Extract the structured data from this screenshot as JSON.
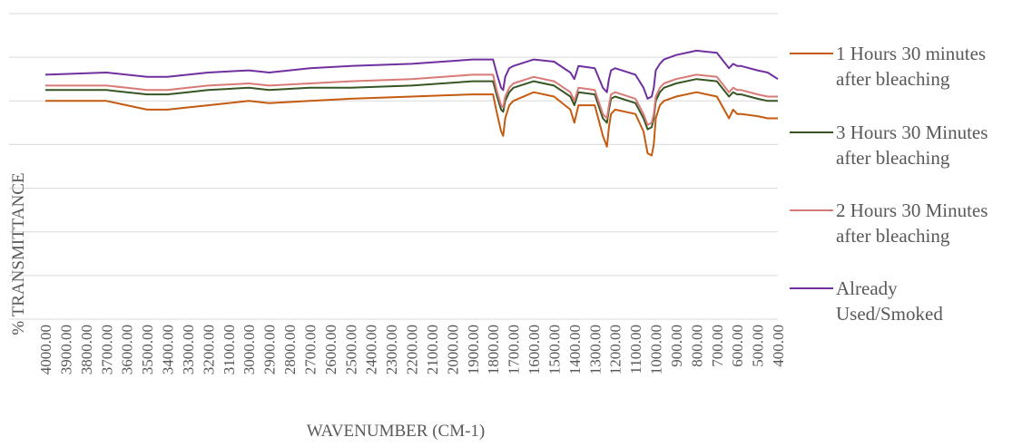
{
  "chart_data": {
    "type": "line",
    "xlabel": "WAVENUMBER (CM-1)",
    "ylabel": "% TRANSMITTANCE",
    "x_ticks": [
      "4000.00",
      "3900.00",
      "3800.00",
      "3700.00",
      "3600.00",
      "3500.00",
      "3400.00",
      "3300.00",
      "3200.00",
      "3100.00",
      "3000.00",
      "2900.00",
      "2800.00",
      "2700.00",
      "2600.00",
      "2500.00",
      "2400.00",
      "2300.00",
      "2200.00",
      "2100.00",
      "2000.00",
      "1900.00",
      "1800.00",
      "1700.00",
      "1600.00",
      "1500.00",
      "1400.00",
      "1300.00",
      "1200.00",
      "1100.00",
      "1000.00",
      "900.00",
      "800.00",
      "700.00",
      "600.00",
      "500.00",
      "400.00"
    ],
    "xlim": [
      4000,
      400
    ],
    "ylim": [
      0,
      7
    ],
    "y_gridlines": [
      0,
      1,
      2,
      3,
      4,
      5,
      6,
      7
    ],
    "y_tick_labels_visible": false,
    "grid": true,
    "legend_position": "right",
    "series": [
      {
        "name": "1 Hours 30 minutes after bleaching",
        "color": "#c55a11",
        "x": [
          4000,
          3700,
          3600,
          3500,
          3400,
          3300,
          3200,
          3000,
          2900,
          2700,
          2500,
          2200,
          1900,
          1800,
          1780,
          1760,
          1750,
          1740,
          1720,
          1700,
          1600,
          1500,
          1420,
          1400,
          1380,
          1300,
          1260,
          1240,
          1230,
          1220,
          1200,
          1100,
          1060,
          1040,
          1020,
          1010,
          1000,
          980,
          960,
          900,
          800,
          700,
          640,
          620,
          600,
          580,
          500,
          450,
          400
        ],
        "y": [
          5.0,
          5.0,
          4.9,
          4.8,
          4.8,
          4.85,
          4.9,
          5.0,
          4.95,
          5.0,
          5.05,
          5.1,
          5.15,
          5.15,
          4.7,
          4.3,
          4.2,
          4.6,
          4.9,
          5.0,
          5.2,
          5.1,
          4.8,
          4.5,
          4.9,
          4.9,
          4.2,
          3.95,
          4.4,
          4.7,
          4.8,
          4.7,
          4.3,
          3.8,
          3.75,
          4.0,
          4.6,
          4.9,
          5.0,
          5.1,
          5.2,
          5.1,
          4.6,
          4.8,
          4.7,
          4.7,
          4.65,
          4.6,
          4.6
        ]
      },
      {
        "name": "3 Hours 30 Minutes after bleaching",
        "color": "#375623",
        "x": [
          4000,
          3700,
          3600,
          3500,
          3400,
          3300,
          3200,
          3000,
          2900,
          2700,
          2500,
          2200,
          1900,
          1800,
          1780,
          1760,
          1750,
          1740,
          1720,
          1700,
          1600,
          1500,
          1420,
          1400,
          1380,
          1300,
          1260,
          1240,
          1230,
          1220,
          1200,
          1100,
          1060,
          1040,
          1020,
          1010,
          1000,
          980,
          960,
          900,
          800,
          700,
          640,
          620,
          600,
          580,
          500,
          450,
          400
        ],
        "y": [
          5.25,
          5.25,
          5.2,
          5.15,
          5.15,
          5.2,
          5.25,
          5.3,
          5.25,
          5.3,
          5.3,
          5.35,
          5.45,
          5.45,
          5.1,
          4.8,
          4.75,
          5.0,
          5.2,
          5.3,
          5.45,
          5.35,
          5.1,
          4.9,
          5.2,
          5.15,
          4.6,
          4.5,
          4.8,
          5.05,
          5.1,
          4.95,
          4.6,
          4.35,
          4.4,
          4.6,
          5.0,
          5.2,
          5.3,
          5.4,
          5.5,
          5.45,
          5.1,
          5.2,
          5.15,
          5.15,
          5.05,
          5.0,
          5.0
        ]
      },
      {
        "name": "2 Hours 30 Minutes after bleaching",
        "color": "#d87a76",
        "x": [
          4000,
          3700,
          3600,
          3500,
          3400,
          3300,
          3200,
          3000,
          2900,
          2700,
          2500,
          2200,
          1900,
          1800,
          1780,
          1760,
          1750,
          1740,
          1720,
          1700,
          1600,
          1500,
          1420,
          1400,
          1380,
          1300,
          1260,
          1240,
          1230,
          1220,
          1200,
          1100,
          1060,
          1040,
          1020,
          1010,
          1000,
          980,
          960,
          900,
          800,
          700,
          640,
          620,
          600,
          580,
          500,
          450,
          400
        ],
        "y": [
          5.35,
          5.35,
          5.3,
          5.25,
          5.25,
          5.3,
          5.35,
          5.4,
          5.35,
          5.4,
          5.45,
          5.5,
          5.6,
          5.6,
          5.2,
          4.9,
          4.85,
          5.1,
          5.3,
          5.4,
          5.55,
          5.45,
          5.2,
          5.0,
          5.3,
          5.25,
          4.7,
          4.6,
          4.9,
          5.15,
          5.2,
          5.05,
          4.7,
          4.45,
          4.5,
          4.7,
          5.1,
          5.3,
          5.4,
          5.5,
          5.6,
          5.55,
          5.2,
          5.3,
          5.25,
          5.25,
          5.15,
          5.1,
          5.1
        ]
      },
      {
        "name": "Already Used/Smoked",
        "color": "#7030a0",
        "x": [
          4000,
          3700,
          3600,
          3500,
          3400,
          3300,
          3200,
          3000,
          2900,
          2700,
          2500,
          2200,
          1900,
          1800,
          1780,
          1760,
          1750,
          1740,
          1720,
          1700,
          1600,
          1500,
          1420,
          1400,
          1380,
          1300,
          1260,
          1240,
          1230,
          1220,
          1200,
          1100,
          1060,
          1040,
          1020,
          1010,
          1000,
          980,
          960,
          900,
          800,
          700,
          640,
          620,
          600,
          580,
          500,
          450,
          400
        ],
        "y": [
          5.6,
          5.65,
          5.6,
          5.55,
          5.55,
          5.6,
          5.65,
          5.7,
          5.65,
          5.75,
          5.8,
          5.85,
          5.95,
          5.95,
          5.6,
          5.3,
          5.25,
          5.55,
          5.75,
          5.8,
          5.95,
          5.9,
          5.65,
          5.5,
          5.8,
          5.75,
          5.3,
          5.2,
          5.5,
          5.7,
          5.75,
          5.6,
          5.3,
          5.05,
          5.1,
          5.3,
          5.7,
          5.85,
          5.95,
          6.05,
          6.15,
          6.1,
          5.75,
          5.85,
          5.8,
          5.8,
          5.7,
          5.65,
          5.5
        ]
      }
    ]
  },
  "legend": [
    {
      "line1": "1 Hours 30 minutes",
      "line2": "after bleaching"
    },
    {
      "line1": "3 Hours 30 Minutes",
      "line2": "after bleaching"
    },
    {
      "line1": "2 Hours 30 Minutes",
      "line2": "after bleaching"
    },
    {
      "line1": "Already",
      "line2": "Used/Smoked"
    }
  ]
}
